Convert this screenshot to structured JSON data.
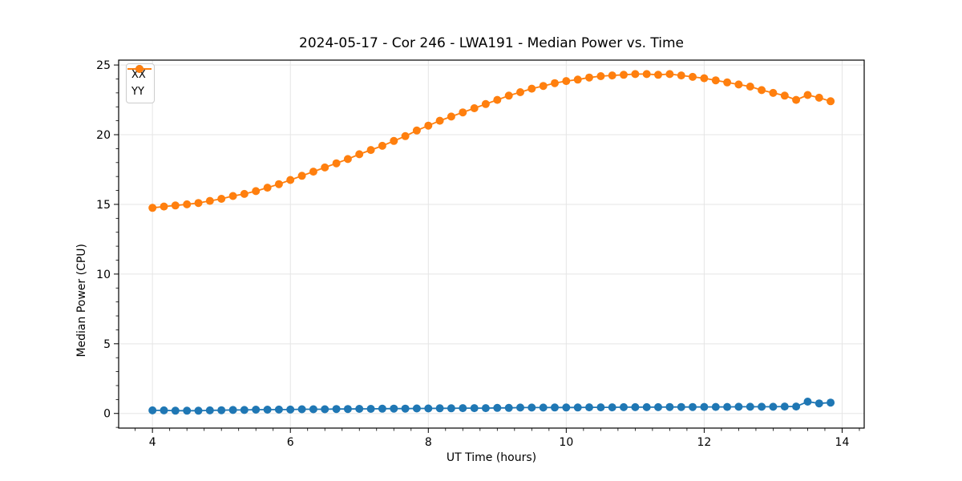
{
  "title": "2024-05-17 - Cor 246 - LWA191 - Median Power vs. Time",
  "colors": {
    "xx_series": "#1f77b4",
    "yy_series": "#ff7f0e",
    "grid": "#e5e5e5",
    "spine": "#000000",
    "background": "#ffffff"
  },
  "legend": {
    "items": [
      {
        "label": "XX",
        "color": "#1f77b4"
      },
      {
        "label": "YY",
        "color": "#ff7f0e"
      }
    ]
  },
  "chart_data": {
    "type": "line",
    "title": "2024-05-17 - Cor 246 - LWA191 - Median Power vs. Time",
    "xlabel": "UT Time (hours)",
    "ylabel": "Median Power (CPU)",
    "xlim": [
      3.51,
      14.32
    ],
    "ylim": [
      -1.05,
      25.35
    ],
    "x_ticks": [
      4,
      6,
      8,
      10,
      12,
      14
    ],
    "y_ticks": [
      0,
      5,
      10,
      15,
      20,
      25
    ],
    "minor_x_step": 0.25,
    "minor_y_step": 1,
    "grid": true,
    "legend_position": "upper-left",
    "marker": "circle",
    "x": [
      4.0,
      4.167,
      4.333,
      4.5,
      4.667,
      4.833,
      5.0,
      5.167,
      5.333,
      5.5,
      5.667,
      5.833,
      6.0,
      6.167,
      6.333,
      6.5,
      6.667,
      6.833,
      7.0,
      7.167,
      7.333,
      7.5,
      7.667,
      7.833,
      8.0,
      8.167,
      8.333,
      8.5,
      8.667,
      8.833,
      9.0,
      9.167,
      9.333,
      9.5,
      9.667,
      9.833,
      10.0,
      10.167,
      10.333,
      10.5,
      10.667,
      10.833,
      11.0,
      11.167,
      11.333,
      11.5,
      11.667,
      11.833,
      12.0,
      12.167,
      12.333,
      12.5,
      12.667,
      12.833,
      13.0,
      13.167,
      13.333,
      13.5,
      13.667,
      13.833
    ],
    "series": [
      {
        "name": "XX",
        "color": "#1f77b4",
        "values": [
          0.22,
          0.22,
          0.2,
          0.2,
          0.2,
          0.22,
          0.23,
          0.25,
          0.25,
          0.27,
          0.27,
          0.28,
          0.28,
          0.3,
          0.3,
          0.3,
          0.32,
          0.32,
          0.33,
          0.33,
          0.34,
          0.35,
          0.35,
          0.36,
          0.36,
          0.37,
          0.37,
          0.38,
          0.38,
          0.38,
          0.4,
          0.4,
          0.42,
          0.42,
          0.42,
          0.43,
          0.43,
          0.43,
          0.44,
          0.44,
          0.44,
          0.45,
          0.45,
          0.45,
          0.45,
          0.46,
          0.46,
          0.46,
          0.47,
          0.47,
          0.47,
          0.48,
          0.48,
          0.48,
          0.48,
          0.5,
          0.5,
          0.85,
          0.72,
          0.78
        ]
      },
      {
        "name": "YY",
        "color": "#ff7f0e",
        "values": [
          14.75,
          14.85,
          14.92,
          15.0,
          15.1,
          15.25,
          15.4,
          15.6,
          15.75,
          15.95,
          16.2,
          16.45,
          16.75,
          17.05,
          17.35,
          17.65,
          17.95,
          18.25,
          18.6,
          18.9,
          19.2,
          19.55,
          19.9,
          20.3,
          20.65,
          21.0,
          21.3,
          21.6,
          21.9,
          22.2,
          22.5,
          22.8,
          23.05,
          23.3,
          23.5,
          23.7,
          23.85,
          23.95,
          24.1,
          24.2,
          24.25,
          24.3,
          24.35,
          24.35,
          24.3,
          24.35,
          24.25,
          24.15,
          24.05,
          23.9,
          23.75,
          23.6,
          23.45,
          23.2,
          23.0,
          22.8,
          22.5,
          22.85,
          22.65,
          22.4
        ]
      }
    ]
  }
}
